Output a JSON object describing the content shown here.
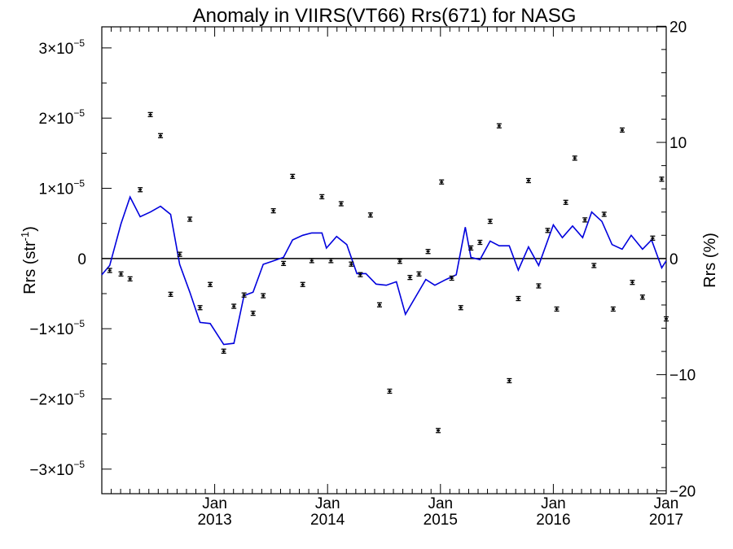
{
  "chart_data": {
    "type": "line",
    "title": "Anomaly in VIIRS(VT66) Rrs(671) for NASG",
    "ylabel_left": "Rrs (str",
    "ylabel_left_sup": "-1",
    "ylabel_left_close": ")",
    "ylabel_right": "Rrs (%)",
    "ylim_left": [
      -3.35e-05,
      3.3e-05
    ],
    "ylim_right": [
      -20.25,
      19.95
    ],
    "xlim": [
      2012.0,
      2017.0
    ],
    "grid": false,
    "legend": "none",
    "left_ticks": [
      {
        "value": 3e-05,
        "mant": "3",
        "exp": "−5"
      },
      {
        "value": 2e-05,
        "mant": "2",
        "exp": "−5"
      },
      {
        "value": 1e-05,
        "mant": "1",
        "exp": "−5"
      },
      {
        "value": 0,
        "mant": "0",
        "exp": ""
      },
      {
        "value": -1e-05,
        "mant": "−1",
        "exp": "−5"
      },
      {
        "value": -2e-05,
        "mant": "−2",
        "exp": "−5"
      },
      {
        "value": -3e-05,
        "mant": "−3",
        "exp": "−5"
      }
    ],
    "right_ticks": [
      {
        "value": 20,
        "label": "20"
      },
      {
        "value": 10,
        "label": "10"
      },
      {
        "value": 0,
        "label": "0"
      },
      {
        "value": -10,
        "label": "−10"
      },
      {
        "value": -20,
        "label": "−20"
      }
    ],
    "x_ticks": [
      {
        "value": 2013.0,
        "month": "Jan",
        "year": "2013"
      },
      {
        "value": 2014.0,
        "month": "Jan",
        "year": "2014"
      },
      {
        "value": 2015.0,
        "month": "Jan",
        "year": "2015"
      },
      {
        "value": 2016.0,
        "month": "Jan",
        "year": "2016"
      },
      {
        "value": 2017.0,
        "month": "Jan",
        "year": "2017"
      }
    ],
    "colors": {
      "line": "#0000dd",
      "points": "#000000",
      "axes": "#000000"
    },
    "series": [
      {
        "kind": "error-bar points",
        "axis": "left",
        "x": [
          2012.07,
          2012.17,
          2012.25,
          2012.34,
          2012.43,
          2012.52,
          2012.61,
          2012.69,
          2012.78,
          2012.87,
          2012.96,
          2013.08,
          2013.17,
          2013.26,
          2013.34,
          2013.43,
          2013.52,
          2013.61,
          2013.69,
          2013.78,
          2013.86,
          2013.95,
          2014.03,
          2014.12,
          2014.21,
          2014.29,
          2014.38,
          2014.46,
          2014.55,
          2014.64,
          2014.73,
          2014.81,
          2014.89,
          2014.98,
          2015.01,
          2015.1,
          2015.18,
          2015.27,
          2015.35,
          2015.44,
          2015.52,
          2015.61,
          2015.69,
          2015.78,
          2015.87,
          2015.95,
          2016.03,
          2016.11,
          2016.19,
          2016.28,
          2016.36,
          2016.45,
          2016.53,
          2016.61,
          2016.7,
          2016.79,
          2016.88,
          2016.96,
          2017.0
        ],
        "values": [
          -1.7e-06,
          -2.2e-06,
          -2.9e-06,
          9.8e-06,
          2.05e-05,
          1.75e-05,
          -5.1e-06,
          6e-07,
          5.6e-06,
          -7e-06,
          -3.7e-06,
          -1.32e-05,
          -6.8e-06,
          -5.2e-06,
          -7.8e-06,
          -5.3e-06,
          6.8e-06,
          -7e-07,
          1.17e-05,
          -3.7e-06,
          -3e-07,
          8.8e-06,
          -3e-07,
          7.8e-06,
          -8e-07,
          -2.3e-06,
          6.2e-06,
          -6.6e-06,
          -1.89e-05,
          -4e-07,
          -2.7e-06,
          -2.2e-06,
          1e-06,
          -2.45e-05,
          1.09e-05,
          -2.8e-06,
          -7e-06,
          1.5e-06,
          2.3e-06,
          5.3e-06,
          1.89e-05,
          -1.74e-05,
          -5.7e-06,
          1.11e-05,
          -3.9e-06,
          4e-06,
          -7.2e-06,
          8e-06,
          1.43e-05,
          5.5e-06,
          -1e-06,
          6.3e-06,
          -7.2e-06,
          1.83e-05,
          -3.4e-06,
          -5.5e-06,
          2.9e-06,
          1.13e-05,
          -8.6e-06
        ]
      },
      {
        "kind": "line",
        "axis": "right",
        "x": [
          2012.0,
          2012.07,
          2012.17,
          2012.25,
          2012.34,
          2012.43,
          2012.52,
          2012.61,
          2012.69,
          2012.78,
          2012.87,
          2012.96,
          2013.08,
          2013.17,
          2013.26,
          2013.34,
          2013.43,
          2013.52,
          2013.61,
          2013.69,
          2013.78,
          2013.86,
          2013.95,
          2013.99,
          2014.08,
          2014.17,
          2014.26,
          2014.34,
          2014.43,
          2014.52,
          2014.61,
          2014.69,
          2014.78,
          2014.87,
          2014.95,
          2015.05,
          2015.14,
          2015.22,
          2015.27,
          2015.35,
          2015.44,
          2015.52,
          2015.61,
          2015.69,
          2015.78,
          2015.87,
          2016.0,
          2016.08,
          2016.17,
          2016.26,
          2016.34,
          2016.43,
          2016.52,
          2016.61,
          2016.69,
          2016.79,
          2016.87,
          2016.96,
          2017.0
        ],
        "values": [
          -1.4,
          -0.6,
          3.0,
          5.3,
          3.6,
          4.0,
          4.5,
          3.8,
          -0.5,
          -2.9,
          -5.5,
          -5.6,
          -7.4,
          -7.3,
          -3.2,
          -2.9,
          -0.5,
          -0.2,
          0.1,
          1.6,
          2.0,
          2.2,
          2.2,
          0.9,
          1.9,
          1.2,
          -1.3,
          -1.3,
          -2.2,
          -2.3,
          -2.0,
          -4.8,
          -3.3,
          -1.8,
          -2.3,
          -1.8,
          -1.4,
          2.7,
          0.1,
          -0.1,
          1.5,
          1.1,
          1.1,
          -1.0,
          1.0,
          -0.6,
          2.9,
          1.8,
          2.8,
          1.8,
          4.0,
          3.2,
          1.2,
          0.8,
          2.0,
          0.8,
          1.6,
          -0.8,
          -0.2
        ]
      }
    ],
    "zero_line": 0
  }
}
